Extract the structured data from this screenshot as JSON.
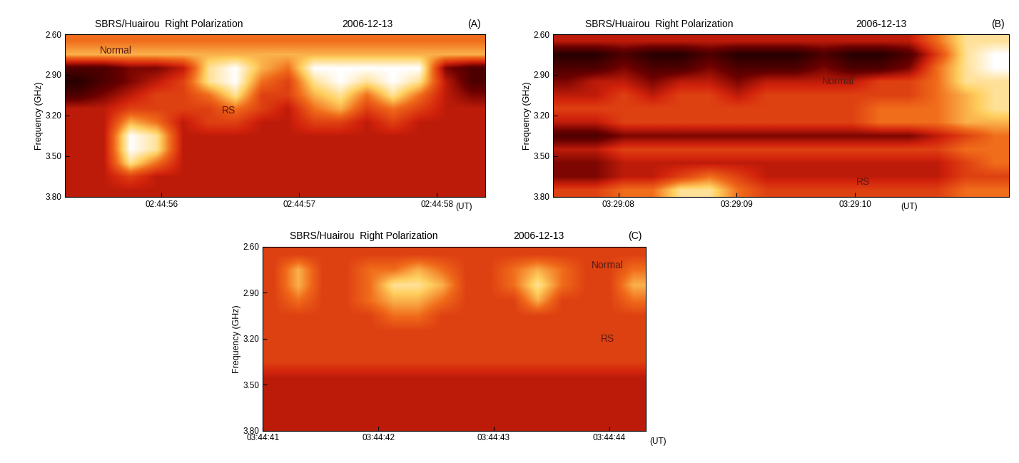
{
  "chart_data": [
    {
      "type": "heatmap",
      "title": "SBRS/Huairou  Right Polarization",
      "subtitle": "2006-12-13",
      "panel_label": "(A)",
      "x_label": "(UT)",
      "y_label": "Frequency (GHz)",
      "annotations": [
        "Normal",
        "RS"
      ],
      "xlim": [
        9895.3,
        9898.35
      ],
      "xticks": [
        {
          "value": 9896,
          "label": "02:44:56"
        },
        {
          "value": 9897,
          "label": "02:44:57"
        },
        {
          "value": 9898,
          "label": "02:44:58"
        }
      ],
      "ylim": [
        3.8,
        2.6
      ],
      "yticks": [
        {
          "value": 2.6,
          "label": "2.60"
        },
        {
          "value": 2.9,
          "label": "2.90"
        },
        {
          "value": 3.2,
          "label": "3.20"
        },
        {
          "value": 3.5,
          "label": "3.50"
        },
        {
          "value": 3.8,
          "label": "3.80"
        }
      ],
      "color_range": [
        0,
        9
      ],
      "cells": [
        [
          6,
          6,
          6,
          6,
          6,
          6,
          6,
          6,
          6,
          6,
          6,
          6,
          6,
          6,
          6,
          6
        ],
        [
          7,
          7,
          7,
          7,
          7,
          7,
          7,
          7,
          7,
          7,
          7,
          7,
          7,
          7,
          7,
          7
        ],
        [
          2,
          2,
          3,
          3,
          4,
          8,
          9,
          7,
          6,
          9,
          9,
          9,
          9,
          9,
          3,
          2
        ],
        [
          1,
          2,
          3,
          4,
          5,
          8,
          9,
          6,
          5,
          8,
          9,
          8,
          9,
          8,
          4,
          2
        ],
        [
          2,
          3,
          4,
          5,
          5,
          6,
          8,
          5,
          5,
          7,
          8,
          6,
          8,
          6,
          4,
          3
        ],
        [
          4,
          4,
          5,
          5,
          5,
          5,
          6,
          5,
          4,
          6,
          7,
          5,
          6,
          5,
          4,
          4
        ],
        [
          4,
          4,
          7,
          6,
          4,
          5,
          5,
          4,
          4,
          5,
          5,
          4,
          5,
          4,
          4,
          4
        ],
        [
          4,
          4,
          9,
          8,
          4,
          4,
          4,
          4,
          4,
          4,
          4,
          4,
          4,
          4,
          4,
          4
        ],
        [
          4,
          4,
          9,
          8,
          4,
          4,
          4,
          4,
          4,
          4,
          4,
          4,
          4,
          4,
          4,
          4
        ],
        [
          4,
          4,
          8,
          6,
          4,
          4,
          4,
          4,
          4,
          4,
          4,
          4,
          4,
          4,
          4,
          4
        ],
        [
          4,
          4,
          5,
          4,
          4,
          4,
          4,
          4,
          4,
          4,
          4,
          4,
          4,
          4,
          4,
          4
        ],
        [
          4,
          4,
          4,
          4,
          4,
          4,
          4,
          4,
          4,
          4,
          4,
          4,
          4,
          4,
          4,
          4
        ]
      ]
    },
    {
      "type": "heatmap",
      "title": "SBRS/Huairou  Right Polarization",
      "subtitle": "2006-12-13",
      "panel_label": "(B)",
      "x_label": "(UT)",
      "y_label": "Frequency (GHz)",
      "annotations": [
        "Normal",
        "RS"
      ],
      "xlim": [
        12547.45,
        12551.3
      ],
      "xticks": [
        {
          "value": 12548,
          "label": "03:29:08"
        },
        {
          "value": 12549,
          "label": "03:29:09"
        },
        {
          "value": 12550,
          "label": "03:29:10"
        }
      ],
      "ylim": [
        3.8,
        2.6
      ],
      "yticks": [
        {
          "value": 2.6,
          "label": "2.60"
        },
        {
          "value": 2.9,
          "label": "2.90"
        },
        {
          "value": 3.2,
          "label": "3.20"
        },
        {
          "value": 3.5,
          "label": "3.50"
        },
        {
          "value": 3.8,
          "label": "3.80"
        }
      ],
      "color_range": [
        0,
        9
      ],
      "cells": [
        [
          4,
          4,
          4,
          4,
          4,
          4,
          4,
          4,
          4,
          4,
          4,
          4,
          4,
          6,
          8,
          8
        ],
        [
          1,
          1,
          2,
          1,
          1,
          2,
          1,
          1,
          1,
          2,
          1,
          1,
          2,
          5,
          8,
          9
        ],
        [
          2,
          2,
          3,
          2,
          2,
          3,
          2,
          2,
          2,
          3,
          2,
          2,
          3,
          6,
          8,
          9
        ],
        [
          3,
          4,
          4,
          3,
          4,
          4,
          3,
          4,
          4,
          4,
          4,
          5,
          5,
          6,
          8,
          8
        ],
        [
          4,
          4,
          5,
          4,
          5,
          5,
          4,
          5,
          5,
          5,
          5,
          5,
          5,
          6,
          7,
          8
        ],
        [
          5,
          5,
          5,
          5,
          5,
          5,
          5,
          5,
          5,
          5,
          5,
          6,
          6,
          6,
          7,
          8
        ],
        [
          4,
          4,
          5,
          5,
          5,
          5,
          5,
          5,
          5,
          5,
          5,
          6,
          6,
          6,
          7,
          7
        ],
        [
          2,
          2,
          3,
          3,
          3,
          3,
          3,
          3,
          3,
          3,
          3,
          3,
          3,
          4,
          5,
          6
        ],
        [
          4,
          4,
          5,
          5,
          5,
          5,
          5,
          5,
          5,
          5,
          5,
          5,
          5,
          5,
          6,
          6
        ],
        [
          3,
          3,
          4,
          4,
          4,
          4,
          4,
          4,
          4,
          4,
          4,
          4,
          4,
          4,
          5,
          6
        ],
        [
          3,
          3,
          4,
          4,
          5,
          6,
          5,
          4,
          4,
          4,
          4,
          4,
          4,
          4,
          5,
          5
        ],
        [
          5,
          5,
          6,
          6,
          8,
          8,
          6,
          5,
          5,
          5,
          5,
          5,
          5,
          5,
          6,
          6
        ]
      ]
    },
    {
      "type": "heatmap",
      "title": "SBRS/Huairou  Right Polarization",
      "subtitle": "2006-12-13",
      "panel_label": "(C)",
      "x_label": "(UT)",
      "y_label": "Frequency (GHz)",
      "annotations": [
        "Normal",
        "RS"
      ],
      "xlim": [
        13481,
        13484.32
      ],
      "xticks": [
        {
          "value": 13481,
          "label": "03:44:41"
        },
        {
          "value": 13482,
          "label": "03:44:42"
        },
        {
          "value": 13483,
          "label": "03:44:43"
        },
        {
          "value": 13484,
          "label": "03:44:44"
        }
      ],
      "ylim": [
        3.8,
        2.6
      ],
      "yticks": [
        {
          "value": 2.6,
          "label": "2.60"
        },
        {
          "value": 2.9,
          "label": "2.90"
        },
        {
          "value": 3.2,
          "label": "3.20"
        },
        {
          "value": 3.5,
          "label": "3.50"
        },
        {
          "value": 3.8,
          "label": "3.80"
        }
      ],
      "color_range": [
        0,
        9
      ],
      "cells": [
        [
          5,
          5,
          5,
          5,
          5,
          5,
          5,
          5,
          5,
          5,
          5,
          5,
          5,
          5,
          5,
          5
        ],
        [
          5,
          7,
          5,
          5,
          6,
          6,
          7,
          6,
          5,
          5,
          6,
          7,
          6,
          5,
          5,
          6
        ],
        [
          5,
          7,
          5,
          5,
          6,
          8,
          8,
          7,
          5,
          5,
          6,
          8,
          6,
          5,
          5,
          7
        ],
        [
          5,
          6,
          5,
          5,
          6,
          7,
          7,
          6,
          5,
          5,
          5,
          7,
          5,
          5,
          5,
          6
        ],
        [
          5,
          5,
          5,
          5,
          5,
          6,
          6,
          5,
          5,
          5,
          5,
          5,
          5,
          5,
          5,
          5
        ],
        [
          5,
          5,
          5,
          5,
          5,
          5,
          5,
          5,
          5,
          5,
          5,
          5,
          5,
          5,
          5,
          5
        ],
        [
          5,
          5,
          5,
          5,
          5,
          5,
          5,
          5,
          5,
          5,
          5,
          5,
          5,
          5,
          5,
          5
        ],
        [
          5,
          5,
          5,
          5,
          5,
          5,
          5,
          5,
          5,
          5,
          5,
          5,
          5,
          5,
          5,
          5
        ],
        [
          4,
          4,
          4,
          4,
          4,
          4,
          4,
          4,
          4,
          4,
          4,
          4,
          4,
          4,
          4,
          4
        ],
        [
          4,
          4,
          4,
          4,
          4,
          4,
          4,
          4,
          4,
          4,
          4,
          4,
          4,
          4,
          4,
          4
        ],
        [
          4,
          4,
          4,
          4,
          4,
          4,
          4,
          4,
          4,
          4,
          4,
          4,
          4,
          4,
          4,
          4
        ],
        [
          4,
          4,
          4,
          4,
          4,
          4,
          4,
          4,
          4,
          4,
          4,
          4,
          4,
          4,
          4,
          4
        ]
      ]
    }
  ]
}
